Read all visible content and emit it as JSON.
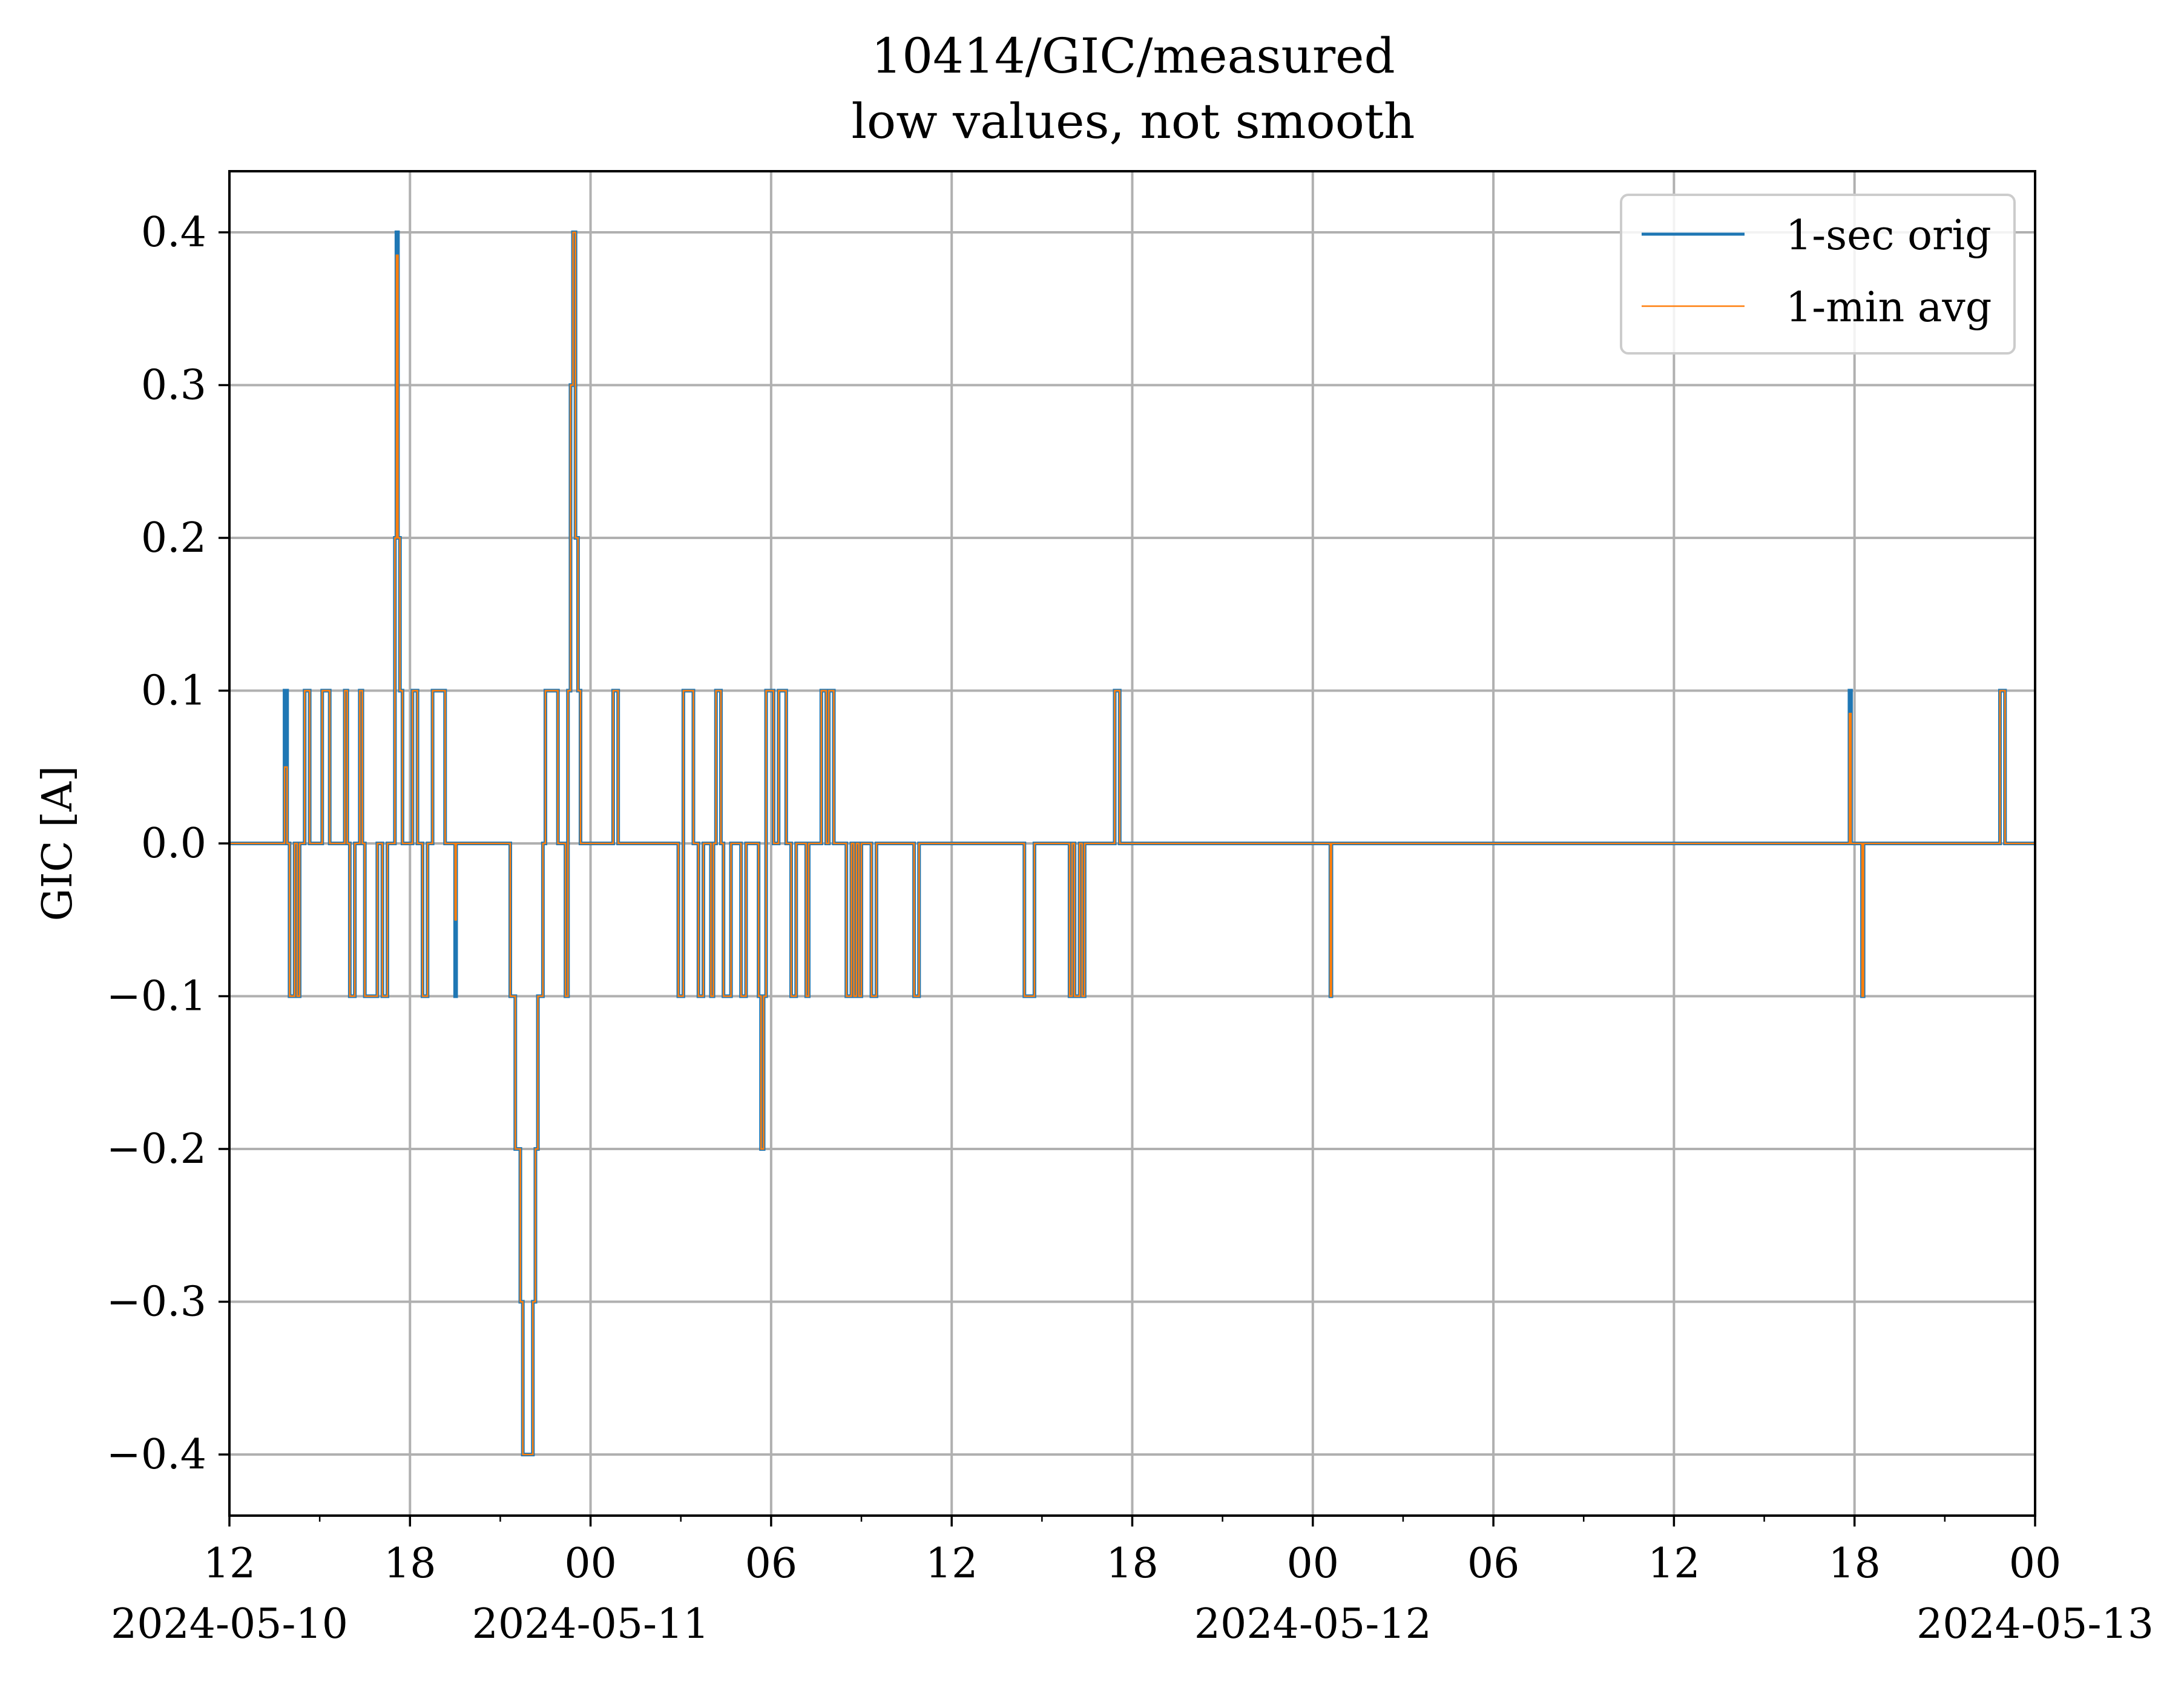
{
  "chart_data": {
    "type": "line",
    "title": "10414/GIC/measured",
    "subtitle": "low values, not smooth",
    "xlabel": "",
    "ylabel": "GIC [A]",
    "x_axis": {
      "type": "datetime",
      "range": [
        "2024-05-10T12:00",
        "2024-05-13T00:00"
      ],
      "major_tick_hours": 6,
      "minor_tick_hours": 3,
      "tick_labels": [
        {
          "time": "2024-05-10T12:00",
          "label": "12",
          "date": "2024-05-10"
        },
        {
          "time": "2024-05-10T18:00",
          "label": "18",
          "date": ""
        },
        {
          "time": "2024-05-11T00:00",
          "label": "00",
          "date": "2024-05-11"
        },
        {
          "time": "2024-05-11T06:00",
          "label": "06",
          "date": ""
        },
        {
          "time": "2024-05-11T12:00",
          "label": "12",
          "date": ""
        },
        {
          "time": "2024-05-11T18:00",
          "label": "18",
          "date": ""
        },
        {
          "time": "2024-05-12T00:00",
          "label": "00",
          "date": "2024-05-12"
        },
        {
          "time": "2024-05-12T06:00",
          "label": "06",
          "date": ""
        },
        {
          "time": "2024-05-12T12:00",
          "label": "12",
          "date": ""
        },
        {
          "time": "2024-05-12T18:00",
          "label": "18",
          "date": ""
        },
        {
          "time": "2024-05-13T00:00",
          "label": "00",
          "date": "2024-05-13"
        }
      ]
    },
    "y_axis": {
      "range": [
        -0.44,
        0.44
      ],
      "ticks": [
        -0.4,
        -0.3,
        -0.2,
        -0.1,
        0.0,
        0.1,
        0.2,
        0.3,
        0.4
      ],
      "tick_labels": [
        "−0.4",
        "−0.3",
        "−0.2",
        "−0.1",
        "0.0",
        "0.1",
        "0.2",
        "0.3",
        "0.4"
      ]
    },
    "grid": true,
    "legend_position": "top-right",
    "series": [
      {
        "name": "1-sec orig",
        "color": "#1f77b4",
        "step": true,
        "points": [
          [
            "2024-05-10T12:00",
            0.0
          ],
          [
            "2024-05-10T13:50",
            0.1
          ],
          [
            "2024-05-10T13:55",
            0.0
          ],
          [
            "2024-05-10T14:00",
            -0.1
          ],
          [
            "2024-05-10T14:10",
            0.0
          ],
          [
            "2024-05-10T14:15",
            -0.1
          ],
          [
            "2024-05-10T14:20",
            0.0
          ],
          [
            "2024-05-10T14:30",
            0.1
          ],
          [
            "2024-05-10T14:40",
            0.0
          ],
          [
            "2024-05-10T15:05",
            0.1
          ],
          [
            "2024-05-10T15:20",
            0.0
          ],
          [
            "2024-05-10T15:50",
            0.1
          ],
          [
            "2024-05-10T15:55",
            0.0
          ],
          [
            "2024-05-10T16:00",
            -0.1
          ],
          [
            "2024-05-10T16:10",
            0.0
          ],
          [
            "2024-05-10T16:20",
            0.1
          ],
          [
            "2024-05-10T16:25",
            0.0
          ],
          [
            "2024-05-10T16:30",
            -0.1
          ],
          [
            "2024-05-10T16:55",
            0.0
          ],
          [
            "2024-05-10T17:05",
            -0.1
          ],
          [
            "2024-05-10T17:15",
            0.0
          ],
          [
            "2024-05-10T17:30",
            0.2
          ],
          [
            "2024-05-10T17:33",
            0.4
          ],
          [
            "2024-05-10T17:36",
            0.2
          ],
          [
            "2024-05-10T17:40",
            0.1
          ],
          [
            "2024-05-10T17:45",
            0.0
          ],
          [
            "2024-05-10T18:05",
            0.1
          ],
          [
            "2024-05-10T18:15",
            0.0
          ],
          [
            "2024-05-10T18:25",
            -0.1
          ],
          [
            "2024-05-10T18:35",
            0.0
          ],
          [
            "2024-05-10T18:45",
            0.1
          ],
          [
            "2024-05-10T19:10",
            0.0
          ],
          [
            "2024-05-10T19:30",
            -0.1
          ],
          [
            "2024-05-10T19:32",
            0.0
          ],
          [
            "2024-05-10T21:20",
            -0.1
          ],
          [
            "2024-05-10T21:30",
            -0.2
          ],
          [
            "2024-05-10T21:40",
            -0.3
          ],
          [
            "2024-05-10T21:45",
            -0.4
          ],
          [
            "2024-05-10T22:05",
            -0.3
          ],
          [
            "2024-05-10T22:10",
            -0.2
          ],
          [
            "2024-05-10T22:15",
            -0.1
          ],
          [
            "2024-05-10T22:25",
            0.0
          ],
          [
            "2024-05-10T22:30",
            0.1
          ],
          [
            "2024-05-10T22:55",
            0.0
          ],
          [
            "2024-05-10T23:10",
            -0.1
          ],
          [
            "2024-05-10T23:15",
            0.1
          ],
          [
            "2024-05-10T23:20",
            0.3
          ],
          [
            "2024-05-10T23:25",
            0.4
          ],
          [
            "2024-05-10T23:30",
            0.2
          ],
          [
            "2024-05-10T23:35",
            0.1
          ],
          [
            "2024-05-10T23:40",
            0.0
          ],
          [
            "2024-05-11T00:45",
            0.1
          ],
          [
            "2024-05-11T00:55",
            0.0
          ],
          [
            "2024-05-11T02:55",
            -0.1
          ],
          [
            "2024-05-11T03:05",
            0.1
          ],
          [
            "2024-05-11T03:25",
            0.0
          ],
          [
            "2024-05-11T03:35",
            -0.1
          ],
          [
            "2024-05-11T03:45",
            0.0
          ],
          [
            "2024-05-11T04:00",
            -0.1
          ],
          [
            "2024-05-11T04:05",
            0.0
          ],
          [
            "2024-05-11T04:10",
            0.1
          ],
          [
            "2024-05-11T04:20",
            0.0
          ],
          [
            "2024-05-11T04:25",
            -0.1
          ],
          [
            "2024-05-11T04:40",
            0.0
          ],
          [
            "2024-05-11T05:00",
            -0.1
          ],
          [
            "2024-05-11T05:10",
            0.0
          ],
          [
            "2024-05-11T05:35",
            -0.1
          ],
          [
            "2024-05-11T05:40",
            -0.2
          ],
          [
            "2024-05-11T05:45",
            -0.1
          ],
          [
            "2024-05-11T05:50",
            0.1
          ],
          [
            "2024-05-11T06:05",
            0.0
          ],
          [
            "2024-05-11T06:15",
            0.1
          ],
          [
            "2024-05-11T06:30",
            0.0
          ],
          [
            "2024-05-11T06:40",
            -0.1
          ],
          [
            "2024-05-11T06:50",
            0.0
          ],
          [
            "2024-05-11T07:10",
            -0.1
          ],
          [
            "2024-05-11T07:15",
            0.0
          ],
          [
            "2024-05-11T07:40",
            0.1
          ],
          [
            "2024-05-11T07:50",
            0.0
          ],
          [
            "2024-05-11T07:55",
            0.1
          ],
          [
            "2024-05-11T08:05",
            0.0
          ],
          [
            "2024-05-11T08:30",
            -0.1
          ],
          [
            "2024-05-11T08:40",
            0.0
          ],
          [
            "2024-05-11T08:45",
            -0.1
          ],
          [
            "2024-05-11T08:50",
            0.0
          ],
          [
            "2024-05-11T08:55",
            -0.1
          ],
          [
            "2024-05-11T09:00",
            0.0
          ],
          [
            "2024-05-11T09:20",
            -0.1
          ],
          [
            "2024-05-11T09:30",
            0.0
          ],
          [
            "2024-05-11T10:45",
            -0.1
          ],
          [
            "2024-05-11T10:55",
            0.0
          ],
          [
            "2024-05-11T14:25",
            -0.1
          ],
          [
            "2024-05-11T14:45",
            0.0
          ],
          [
            "2024-05-11T15:55",
            -0.1
          ],
          [
            "2024-05-11T16:00",
            0.0
          ],
          [
            "2024-05-11T16:05",
            -0.1
          ],
          [
            "2024-05-11T16:15",
            0.0
          ],
          [
            "2024-05-11T16:20",
            -0.1
          ],
          [
            "2024-05-11T16:25",
            0.0
          ],
          [
            "2024-05-11T17:25",
            0.1
          ],
          [
            "2024-05-11T17:35",
            0.0
          ],
          [
            "2024-05-12T00:35",
            -0.1
          ],
          [
            "2024-05-12T00:37",
            0.0
          ],
          [
            "2024-05-12T17:50",
            0.1
          ],
          [
            "2024-05-12T17:53",
            0.0
          ],
          [
            "2024-05-12T18:15",
            -0.1
          ],
          [
            "2024-05-12T18:18",
            0.0
          ],
          [
            "2024-05-12T22:50",
            0.1
          ],
          [
            "2024-05-12T23:00",
            0.0
          ],
          [
            "2024-05-13T00:00",
            0.0
          ]
        ]
      },
      {
        "name": "1-min avg",
        "color": "#ff7f0e",
        "step": true,
        "points": [
          [
            "2024-05-10T12:00",
            0.0
          ],
          [
            "2024-05-10T13:50",
            0.05
          ],
          [
            "2024-05-10T13:55",
            0.0
          ],
          [
            "2024-05-10T14:00",
            -0.1
          ],
          [
            "2024-05-10T14:10",
            0.0
          ],
          [
            "2024-05-10T14:15",
            -0.1
          ],
          [
            "2024-05-10T14:20",
            0.0
          ],
          [
            "2024-05-10T14:30",
            0.1
          ],
          [
            "2024-05-10T14:40",
            0.0
          ],
          [
            "2024-05-10T15:05",
            0.1
          ],
          [
            "2024-05-10T15:20",
            0.0
          ],
          [
            "2024-05-10T15:50",
            0.1
          ],
          [
            "2024-05-10T15:55",
            0.0
          ],
          [
            "2024-05-10T16:00",
            -0.1
          ],
          [
            "2024-05-10T16:10",
            0.0
          ],
          [
            "2024-05-10T16:20",
            0.1
          ],
          [
            "2024-05-10T16:25",
            0.0
          ],
          [
            "2024-05-10T16:30",
            -0.1
          ],
          [
            "2024-05-10T16:55",
            0.0
          ],
          [
            "2024-05-10T17:05",
            -0.1
          ],
          [
            "2024-05-10T17:15",
            0.0
          ],
          [
            "2024-05-10T17:30",
            0.2
          ],
          [
            "2024-05-10T17:33",
            0.385
          ],
          [
            "2024-05-10T17:36",
            0.2
          ],
          [
            "2024-05-10T17:40",
            0.1
          ],
          [
            "2024-05-10T17:45",
            0.0
          ],
          [
            "2024-05-10T18:05",
            0.1
          ],
          [
            "2024-05-10T18:15",
            0.0
          ],
          [
            "2024-05-10T18:25",
            -0.1
          ],
          [
            "2024-05-10T18:35",
            0.0
          ],
          [
            "2024-05-10T18:45",
            0.1
          ],
          [
            "2024-05-10T19:10",
            0.0
          ],
          [
            "2024-05-10T19:30",
            -0.05
          ],
          [
            "2024-05-10T19:32",
            0.0
          ],
          [
            "2024-05-10T21:20",
            -0.1
          ],
          [
            "2024-05-10T21:30",
            -0.2
          ],
          [
            "2024-05-10T21:40",
            -0.3
          ],
          [
            "2024-05-10T21:45",
            -0.4
          ],
          [
            "2024-05-10T22:05",
            -0.3
          ],
          [
            "2024-05-10T22:10",
            -0.2
          ],
          [
            "2024-05-10T22:15",
            -0.1
          ],
          [
            "2024-05-10T22:25",
            0.0
          ],
          [
            "2024-05-10T22:30",
            0.1
          ],
          [
            "2024-05-10T22:55",
            0.0
          ],
          [
            "2024-05-10T23:10",
            -0.1
          ],
          [
            "2024-05-10T23:15",
            0.1
          ],
          [
            "2024-05-10T23:20",
            0.3
          ],
          [
            "2024-05-10T23:25",
            0.4
          ],
          [
            "2024-05-10T23:30",
            0.2
          ],
          [
            "2024-05-10T23:35",
            0.1
          ],
          [
            "2024-05-10T23:40",
            0.0
          ],
          [
            "2024-05-11T00:45",
            0.1
          ],
          [
            "2024-05-11T00:55",
            0.0
          ],
          [
            "2024-05-11T02:55",
            -0.1
          ],
          [
            "2024-05-11T03:05",
            0.1
          ],
          [
            "2024-05-11T03:25",
            0.0
          ],
          [
            "2024-05-11T03:35",
            -0.1
          ],
          [
            "2024-05-11T03:45",
            0.0
          ],
          [
            "2024-05-11T04:00",
            -0.1
          ],
          [
            "2024-05-11T04:05",
            0.0
          ],
          [
            "2024-05-11T04:10",
            0.1
          ],
          [
            "2024-05-11T04:20",
            0.0
          ],
          [
            "2024-05-11T04:25",
            -0.1
          ],
          [
            "2024-05-11T04:40",
            0.0
          ],
          [
            "2024-05-11T05:00",
            -0.1
          ],
          [
            "2024-05-11T05:10",
            0.0
          ],
          [
            "2024-05-11T05:35",
            -0.1
          ],
          [
            "2024-05-11T05:40",
            -0.2
          ],
          [
            "2024-05-11T05:45",
            -0.1
          ],
          [
            "2024-05-11T05:50",
            0.1
          ],
          [
            "2024-05-11T06:05",
            0.0
          ],
          [
            "2024-05-11T06:15",
            0.1
          ],
          [
            "2024-05-11T06:30",
            0.0
          ],
          [
            "2024-05-11T06:40",
            -0.1
          ],
          [
            "2024-05-11T06:50",
            0.0
          ],
          [
            "2024-05-11T07:10",
            -0.1
          ],
          [
            "2024-05-11T07:15",
            0.0
          ],
          [
            "2024-05-11T07:40",
            0.1
          ],
          [
            "2024-05-11T07:50",
            0.0
          ],
          [
            "2024-05-11T07:55",
            0.1
          ],
          [
            "2024-05-11T08:05",
            0.0
          ],
          [
            "2024-05-11T08:30",
            -0.1
          ],
          [
            "2024-05-11T08:40",
            0.0
          ],
          [
            "2024-05-11T08:45",
            -0.1
          ],
          [
            "2024-05-11T08:50",
            0.0
          ],
          [
            "2024-05-11T08:55",
            -0.1
          ],
          [
            "2024-05-11T09:00",
            0.0
          ],
          [
            "2024-05-11T09:20",
            -0.1
          ],
          [
            "2024-05-11T09:30",
            0.0
          ],
          [
            "2024-05-11T10:45",
            -0.1
          ],
          [
            "2024-05-11T10:55",
            0.0
          ],
          [
            "2024-05-11T14:25",
            -0.1
          ],
          [
            "2024-05-11T14:45",
            0.0
          ],
          [
            "2024-05-11T15:55",
            -0.1
          ],
          [
            "2024-05-11T16:00",
            0.0
          ],
          [
            "2024-05-11T16:05",
            -0.1
          ],
          [
            "2024-05-11T16:15",
            0.0
          ],
          [
            "2024-05-11T16:20",
            -0.1
          ],
          [
            "2024-05-11T16:25",
            0.0
          ],
          [
            "2024-05-11T17:25",
            0.1
          ],
          [
            "2024-05-11T17:35",
            0.0
          ],
          [
            "2024-05-12T00:35",
            -0.1
          ],
          [
            "2024-05-12T00:37",
            0.0
          ],
          [
            "2024-05-12T17:50",
            0.085
          ],
          [
            "2024-05-12T17:53",
            0.0
          ],
          [
            "2024-05-12T18:15",
            -0.1
          ],
          [
            "2024-05-12T18:18",
            0.0
          ],
          [
            "2024-05-12T22:50",
            0.1
          ],
          [
            "2024-05-12T23:00",
            0.0
          ],
          [
            "2024-05-13T00:00",
            0.0
          ]
        ]
      }
    ]
  },
  "colors": {
    "series_1": "#1f77b4",
    "series_2": "#ff7f0e",
    "grid": "#b0b0b0",
    "legend_border": "#cccccc"
  }
}
